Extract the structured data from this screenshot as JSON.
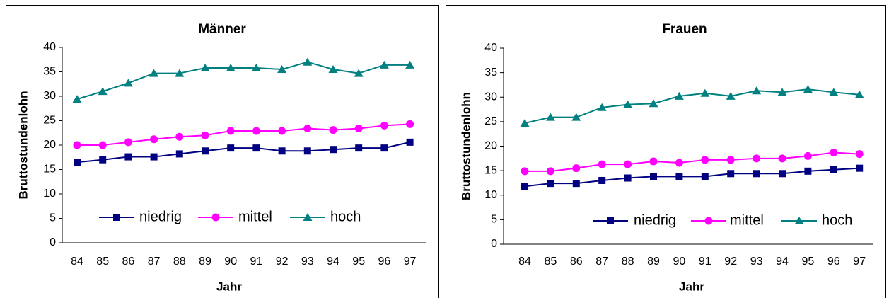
{
  "chart_data": [
    {
      "type": "line",
      "title": "Männer",
      "x_label": "Jahr",
      "y_label": "Bruttostundenlohn",
      "categories": [
        "84",
        "85",
        "86",
        "87",
        "88",
        "89",
        "90",
        "91",
        "92",
        "93",
        "94",
        "95",
        "96",
        "97"
      ],
      "ylim": [
        0,
        40
      ],
      "yticks": [
        0,
        5,
        10,
        15,
        20,
        25,
        30,
        35,
        40
      ],
      "legend": "bottom",
      "series": [
        {
          "name": "niedrig",
          "color": "#000080",
          "marker": "square",
          "values": [
            16.5,
            17,
            17.6,
            17.6,
            18.2,
            18.8,
            19.4,
            19.4,
            18.8,
            18.8,
            19.1,
            19.4,
            19.4,
            20.6
          ]
        },
        {
          "name": "mittel",
          "color": "#ff00ff",
          "marker": "circle",
          "values": [
            20,
            20,
            20.6,
            21.2,
            21.7,
            22,
            22.9,
            22.9,
            22.9,
            23.4,
            23.1,
            23.4,
            24,
            24.3
          ]
        },
        {
          "name": "hoch",
          "color": "#008080",
          "marker": "triangle",
          "values": [
            29.4,
            31,
            32.7,
            34.7,
            34.7,
            35.8,
            35.8,
            35.8,
            35.5,
            37,
            35.5,
            34.7,
            36.4,
            36.4
          ]
        }
      ]
    },
    {
      "type": "line",
      "title": "Frauen",
      "x_label": "Jahr",
      "y_label": "Bruttostundenlohn",
      "categories": [
        "84",
        "85",
        "86",
        "87",
        "88",
        "89",
        "90",
        "91",
        "92",
        "93",
        "94",
        "95",
        "96",
        "97"
      ],
      "ylim": [
        0,
        40
      ],
      "yticks": [
        0,
        5,
        10,
        15,
        20,
        25,
        30,
        35,
        40
      ],
      "legend": "bottom",
      "series": [
        {
          "name": "niedrig",
          "color": "#000080",
          "marker": "square",
          "values": [
            11.8,
            12.4,
            12.4,
            13,
            13.5,
            13.8,
            13.8,
            13.8,
            14.4,
            14.4,
            14.4,
            14.9,
            15.2,
            15.5
          ]
        },
        {
          "name": "mittel",
          "color": "#ff00ff",
          "marker": "circle",
          "values": [
            14.9,
            14.9,
            15.5,
            16.3,
            16.3,
            16.9,
            16.6,
            17.2,
            17.2,
            17.5,
            17.5,
            18,
            18.7,
            18.4
          ]
        },
        {
          "name": "hoch",
          "color": "#008080",
          "marker": "triangle",
          "values": [
            24.7,
            25.9,
            25.9,
            27.9,
            28.5,
            28.7,
            30.2,
            30.8,
            30.2,
            31.3,
            31,
            31.6,
            31,
            30.5
          ]
        }
      ]
    }
  ]
}
